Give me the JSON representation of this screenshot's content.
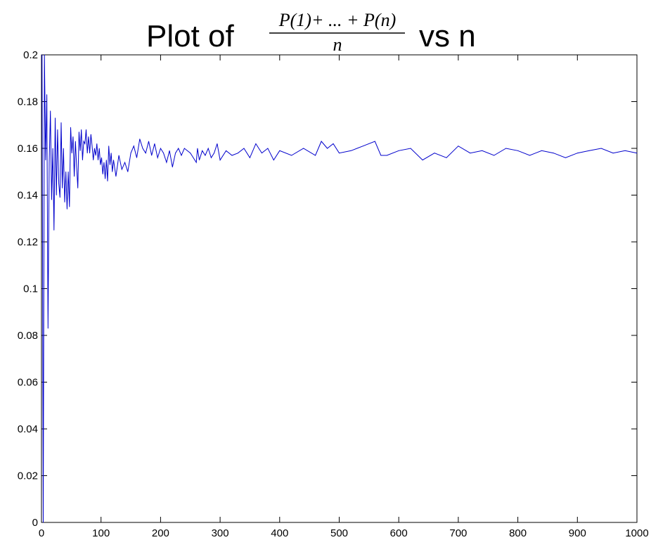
{
  "chart_data": {
    "type": "line",
    "title": {
      "prefix": "Plot of",
      "numerator": "P(1)+ ... + P(n)",
      "denominator": "n",
      "suffix": "vs n"
    },
    "xlabel": "",
    "ylabel": "",
    "xlim": [
      0,
      1000
    ],
    "ylim": [
      0,
      0.2
    ],
    "x_ticks": [
      "0",
      "100",
      "200",
      "300",
      "400",
      "500",
      "600",
      "700",
      "800",
      "900",
      "1000"
    ],
    "y_ticks": [
      "0",
      "0.02",
      "0.04",
      "0.06",
      "0.08",
      "0.1",
      "0.12",
      "0.14",
      "0.16",
      "0.18",
      "0.2"
    ],
    "grid": false,
    "line_color": "#0000cc",
    "series": [
      {
        "x": [
          1,
          3,
          5,
          7,
          9,
          11,
          13,
          15,
          17,
          19,
          21,
          23,
          25,
          27,
          29,
          31,
          33,
          35,
          37,
          39,
          41,
          43,
          45,
          47,
          49,
          51,
          53,
          55,
          57,
          59,
          61,
          63,
          65,
          67,
          69,
          71,
          73,
          75,
          77,
          79,
          81,
          83,
          85,
          87,
          89,
          91,
          93,
          95,
          97,
          99,
          101,
          103,
          105,
          107,
          109,
          111,
          113,
          115,
          117,
          119,
          121,
          125,
          130,
          135,
          140,
          145,
          150,
          155,
          160,
          165,
          170,
          175,
          180,
          185,
          190,
          195,
          200,
          205,
          210,
          215,
          220,
          225,
          230,
          235,
          240,
          250,
          260,
          262,
          265,
          270,
          275,
          280,
          285,
          290,
          295,
          300,
          310,
          320,
          330,
          340,
          350,
          360,
          370,
          380,
          390,
          400,
          420,
          440,
          460,
          470,
          480,
          490,
          500,
          520,
          540,
          560,
          570,
          580,
          600,
          620,
          640,
          660,
          680,
          700,
          720,
          740,
          760,
          780,
          800,
          820,
          840,
          860,
          880,
          900,
          920,
          940,
          960,
          980,
          1000
        ],
        "y": [
          0.2,
          0.0,
          0.2,
          0.155,
          0.183,
          0.083,
          0.154,
          0.176,
          0.138,
          0.16,
          0.125,
          0.173,
          0.14,
          0.168,
          0.145,
          0.139,
          0.171,
          0.143,
          0.16,
          0.137,
          0.15,
          0.134,
          0.15,
          0.135,
          0.169,
          0.158,
          0.165,
          0.148,
          0.163,
          0.152,
          0.143,
          0.167,
          0.159,
          0.168,
          0.155,
          0.163,
          0.162,
          0.168,
          0.158,
          0.165,
          0.158,
          0.166,
          0.161,
          0.155,
          0.16,
          0.157,
          0.162,
          0.155,
          0.16,
          0.153,
          0.156,
          0.149,
          0.154,
          0.147,
          0.155,
          0.146,
          0.161,
          0.153,
          0.158,
          0.15,
          0.155,
          0.148,
          0.157,
          0.151,
          0.154,
          0.15,
          0.158,
          0.161,
          0.156,
          0.164,
          0.16,
          0.158,
          0.163,
          0.157,
          0.162,
          0.156,
          0.16,
          0.158,
          0.154,
          0.159,
          0.152,
          0.158,
          0.16,
          0.157,
          0.16,
          0.158,
          0.154,
          0.16,
          0.155,
          0.159,
          0.157,
          0.16,
          0.156,
          0.158,
          0.162,
          0.155,
          0.159,
          0.157,
          0.158,
          0.16,
          0.156,
          0.162,
          0.158,
          0.16,
          0.155,
          0.159,
          0.157,
          0.16,
          0.157,
          0.163,
          0.16,
          0.162,
          0.158,
          0.159,
          0.161,
          0.163,
          0.157,
          0.157,
          0.159,
          0.16,
          0.155,
          0.158,
          0.156,
          0.161,
          0.158,
          0.159,
          0.157,
          0.16,
          0.159,
          0.157,
          0.159,
          0.158,
          0.156,
          0.158,
          0.159,
          0.16,
          0.158,
          0.159,
          0.158
        ]
      }
    ]
  }
}
